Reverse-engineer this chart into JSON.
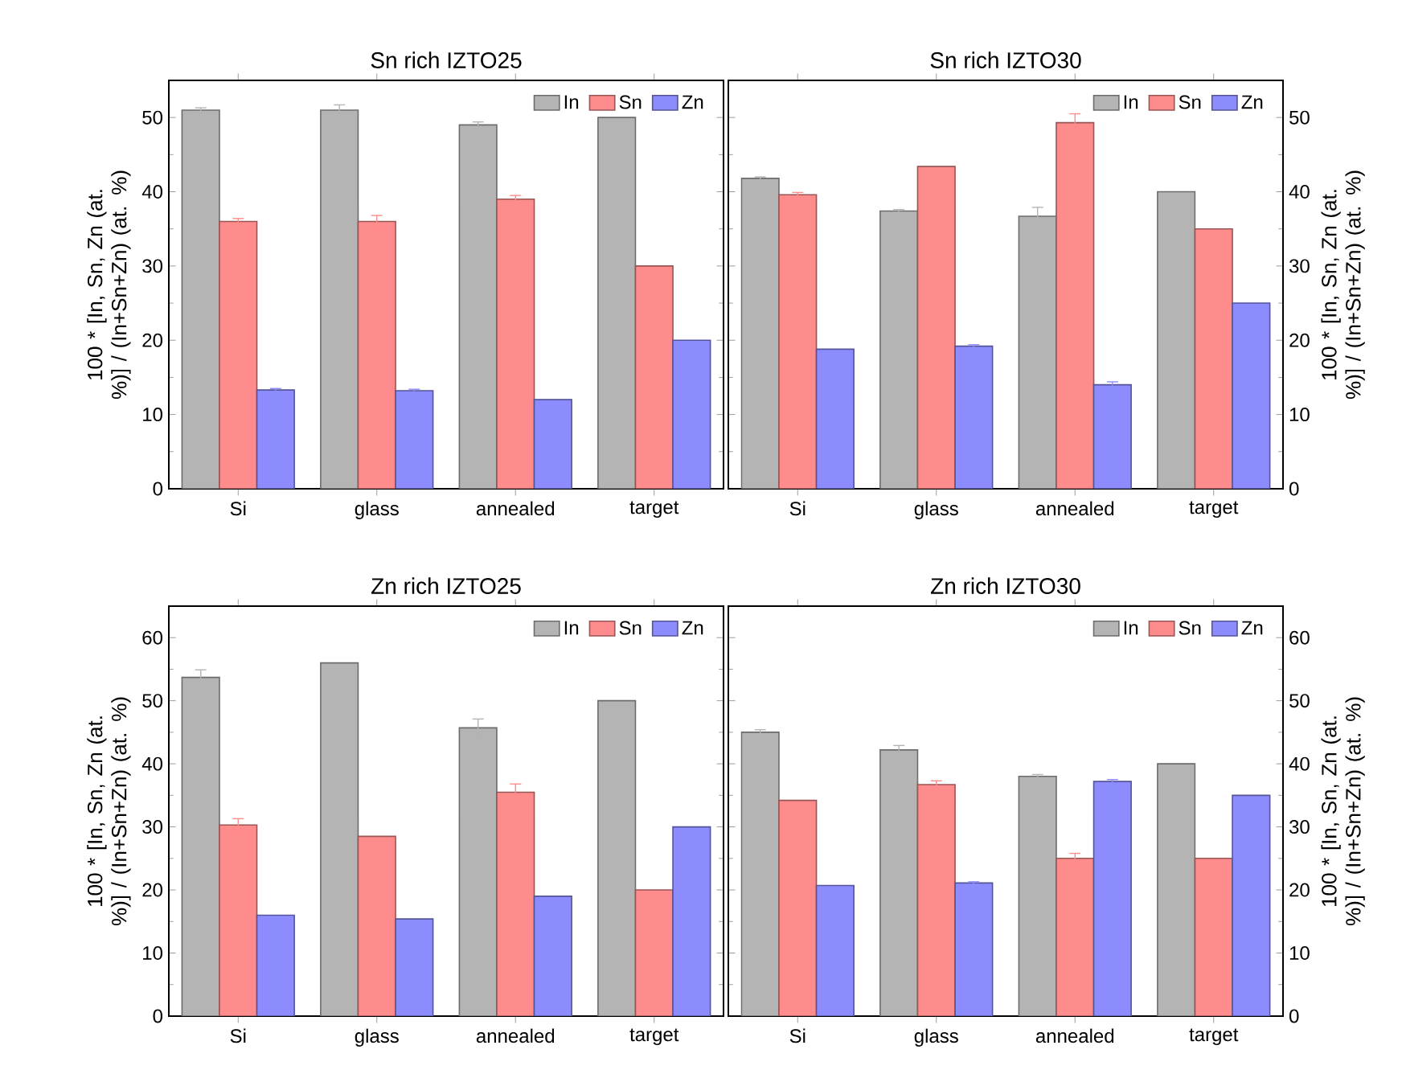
{
  "chart_data": [
    {
      "type": "bar",
      "title": "Sn rich IZTO25",
      "ylabel": "100 * [In, Sn, Zn (at. %)] / (In+Sn+Zn) (at. %)",
      "categories": [
        "Si",
        "glass",
        "annealed",
        "target"
      ],
      "ylim": [
        0,
        55
      ],
      "yticks": [
        0,
        10,
        20,
        30,
        40,
        50
      ],
      "legend": "top right",
      "series": [
        {
          "name": "In",
          "color": "#b4b4b4",
          "values": [
            51,
            51,
            49,
            50
          ],
          "errors": [
            0.3,
            0.7,
            0.4,
            null
          ]
        },
        {
          "name": "Sn",
          "color": "#ff8c8c",
          "values": [
            36,
            36,
            39,
            30
          ],
          "errors": [
            0.4,
            0.8,
            0.5,
            null
          ]
        },
        {
          "name": "Zn",
          "color": "#8c8cff",
          "values": [
            13.3,
            13.2,
            12,
            20
          ],
          "errors": [
            0.2,
            0.2,
            null,
            null
          ]
        }
      ]
    },
    {
      "type": "bar",
      "title": "Sn rich IZTO30",
      "y2label": "100 * [In, Sn, Zn (at. %)] / (In+Sn+Zn) (at. %)",
      "categories": [
        "Si",
        "glass",
        "annealed",
        "target"
      ],
      "y2lim": [
        0,
        55
      ],
      "y2ticks": [
        0,
        10,
        20,
        30,
        40,
        50
      ],
      "legend": "top right",
      "series": [
        {
          "name": "In",
          "color": "#b4b4b4",
          "axis": "y2",
          "values": [
            41.8,
            37.4,
            36.7,
            40
          ],
          "errors": [
            0.2,
            0.2,
            1.2,
            null
          ]
        },
        {
          "name": "Sn",
          "color": "#ff8c8c",
          "axis": "y2",
          "values": [
            39.6,
            43.4,
            49.3,
            35
          ],
          "errors": [
            0.3,
            null,
            1.2,
            null
          ]
        },
        {
          "name": "Zn",
          "color": "#8c8cff",
          "axis": "y2",
          "values": [
            18.8,
            19.2,
            14,
            25
          ],
          "errors": [
            null,
            0.2,
            0.4,
            null
          ]
        }
      ]
    },
    {
      "type": "bar",
      "title": "Zn rich IZTO25",
      "ylabel": "100 * [In, Sn, Zn (at. %)] / (In+Sn+Zn) (at. %)",
      "categories": [
        "Si",
        "glass",
        "annealed",
        "target"
      ],
      "ylim": [
        0,
        65
      ],
      "yticks": [
        0,
        10,
        20,
        30,
        40,
        50,
        60
      ],
      "legend": "top right",
      "series": [
        {
          "name": "In",
          "color": "#b4b4b4",
          "values": [
            53.7,
            56,
            45.7,
            50
          ],
          "errors": [
            1.2,
            null,
            1.4,
            null
          ]
        },
        {
          "name": "Sn",
          "color": "#ff8c8c",
          "values": [
            30.3,
            28.5,
            35.5,
            20
          ],
          "errors": [
            1,
            null,
            1.3,
            null
          ]
        },
        {
          "name": "Zn",
          "color": "#8c8cff",
          "values": [
            16,
            15.4,
            19,
            30
          ]
        }
      ]
    },
    {
      "type": "bar",
      "title": "Zn rich IZTO30",
      "y2label": "100 * [In, Sn, Zn (at. %)] / (In+Sn+Zn) (at. %)",
      "categories": [
        "Si",
        "glass",
        "annealed",
        "target"
      ],
      "y2lim": [
        0,
        65
      ],
      "y2ticks": [
        0,
        10,
        20,
        30,
        40,
        50,
        60
      ],
      "legend": "top right",
      "series": [
        {
          "name": "In",
          "color": "#b4b4b4",
          "axis": "y2",
          "values": [
            45,
            42.2,
            38,
            40
          ],
          "errors": [
            0.4,
            0.7,
            0.3,
            null
          ]
        },
        {
          "name": "Sn",
          "color": "#ff8c8c",
          "axis": "y2",
          "values": [
            34.2,
            36.7,
            25,
            25
          ],
          "errors": [
            null,
            0.6,
            0.8,
            null
          ]
        },
        {
          "name": "Zn",
          "color": "#8c8cff",
          "axis": "y2",
          "values": [
            20.7,
            21.1,
            37.2,
            35
          ],
          "errors": [
            null,
            0.2,
            0.3,
            null
          ]
        }
      ]
    }
  ]
}
